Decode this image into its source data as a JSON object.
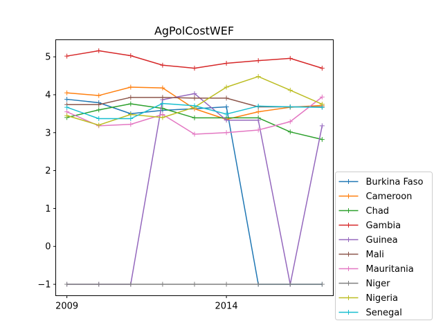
{
  "chart_data": {
    "type": "line",
    "title": "AgPolCostWEF",
    "xlabel": "",
    "ylabel": "",
    "x": [
      2009,
      2010,
      2011,
      2012,
      2013,
      2014,
      2015,
      2016,
      2017
    ],
    "xlim": [
      2008.65,
      2017.35
    ],
    "ylim": [
      -1.3,
      5.45
    ],
    "xticks": [
      2009,
      2014
    ],
    "yticks": [
      -1,
      0,
      1,
      2,
      3,
      4,
      5
    ],
    "legend_position": "right",
    "grid": false,
    "series": [
      {
        "name": "Burkina Faso",
        "color": "#1f77b4",
        "values": [
          3.88,
          3.79,
          3.5,
          3.59,
          3.63,
          3.68,
          -1,
          -1,
          -1
        ]
      },
      {
        "name": "Cameroon",
        "color": "#ff7f0e",
        "values": [
          4.05,
          3.98,
          4.2,
          4.18,
          3.63,
          3.35,
          3.55,
          3.67,
          3.72
        ]
      },
      {
        "name": "Chad",
        "color": "#2ca02c",
        "values": [
          3.4,
          3.6,
          3.76,
          3.64,
          3.39,
          3.39,
          3.39,
          3.02,
          2.82
        ]
      },
      {
        "name": "Gambia",
        "color": "#d62728",
        "values": [
          5.02,
          5.16,
          5.03,
          4.78,
          4.7,
          4.83,
          4.9,
          4.96,
          4.7
        ]
      },
      {
        "name": "Guinea",
        "color": "#9467bd",
        "values": [
          -1,
          -1,
          -1,
          3.87,
          4.03,
          3.33,
          3.33,
          -1,
          3.18
        ]
      },
      {
        "name": "Mali",
        "color": "#8c564b",
        "values": [
          3.74,
          3.74,
          3.93,
          3.93,
          3.91,
          3.91,
          3.68,
          3.68,
          3.68
        ]
      },
      {
        "name": "Mauritania",
        "color": "#e377c2",
        "values": [
          3.55,
          3.18,
          3.22,
          3.48,
          2.96,
          3.0,
          3.07,
          3.29,
          3.94
        ]
      },
      {
        "name": "Niger",
        "color": "#7f7f7f",
        "values": [
          -1,
          -1,
          -1,
          -1,
          -1,
          -1,
          -1,
          -1,
          -1
        ]
      },
      {
        "name": "Nigeria",
        "color": "#bcbd22",
        "values": [
          3.45,
          3.2,
          3.48,
          3.4,
          3.67,
          4.2,
          4.48,
          4.12,
          3.75
        ]
      },
      {
        "name": "Senegal",
        "color": "#17becf",
        "values": [
          3.67,
          3.37,
          3.37,
          3.77,
          3.71,
          3.49,
          3.7,
          3.68,
          3.67
        ]
      }
    ]
  }
}
